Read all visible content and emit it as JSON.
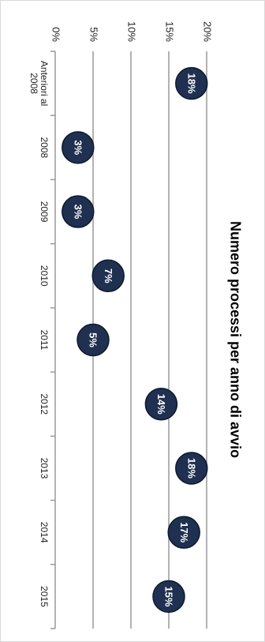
{
  "chart_data": {
    "type": "bubble-dot",
    "title": "Numero processi per anno di avvio",
    "categories": [
      "Anteriori al 2008",
      "2008",
      "2009",
      "2010",
      "2011",
      "2012",
      "2013",
      "2014",
      "2015"
    ],
    "values": [
      18,
      3,
      3,
      7,
      5,
      14,
      18,
      17,
      15
    ],
    "value_labels": [
      "18%",
      "3%",
      "3%",
      "7%",
      "5%",
      "14%",
      "18%",
      "17%",
      "15%"
    ],
    "color": "#1f3050",
    "ylim": [
      0,
      20
    ],
    "yticks": [
      {
        "value": 0,
        "label": "0%"
      },
      {
        "value": 5,
        "label": "5%"
      },
      {
        "value": 10,
        "label": "10%"
      },
      {
        "value": 15,
        "label": "15%"
      },
      {
        "value": 20,
        "label": "20%"
      }
    ],
    "grid": true
  }
}
